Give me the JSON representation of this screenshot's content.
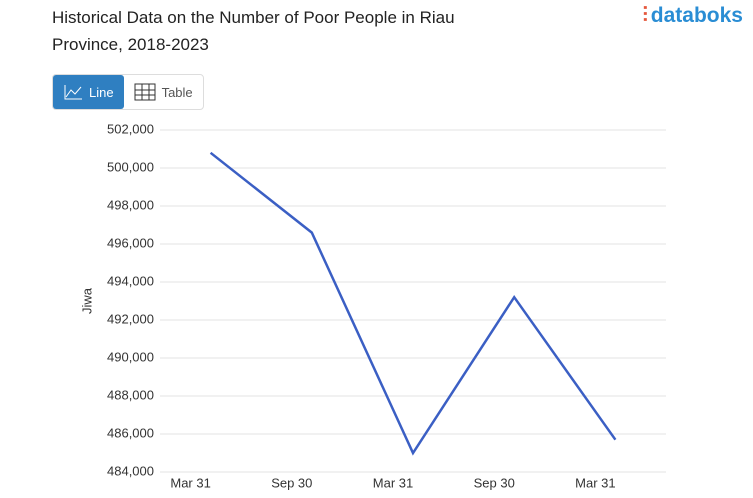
{
  "ui": {
    "logo": "databoks",
    "tabs": [
      "Line",
      "Table"
    ]
  },
  "chart_data": {
    "type": "line",
    "title": "Historical Data on the Number of Poor People in Riau Province, 2018-2023",
    "y_label": "Jiwa",
    "categories": [
      "Mar 31",
      "Sep 30",
      "Mar 31",
      "Sep 30",
      "Mar 31"
    ],
    "series": [
      {
        "name": "Jiwa",
        "color": "#3b5fc4",
        "values": [
          500800,
          496600,
          485000,
          493200,
          485700
        ]
      }
    ],
    "ylim": [
      484000,
      502000
    ],
    "yticks": [
      {
        "value": 484000,
        "label": "484,000"
      },
      {
        "value": 486000,
        "label": "486,000"
      },
      {
        "value": 488000,
        "label": "488,000"
      },
      {
        "value": 490000,
        "label": "490,000"
      },
      {
        "value": 492000,
        "label": "492,000"
      },
      {
        "value": 494000,
        "label": "494,000"
      },
      {
        "value": 496000,
        "label": "496,000"
      },
      {
        "value": 498000,
        "label": "498,000"
      },
      {
        "value": 500000,
        "label": "500,000"
      },
      {
        "value": 502000,
        "label": "502,000"
      }
    ],
    "grid": true
  }
}
